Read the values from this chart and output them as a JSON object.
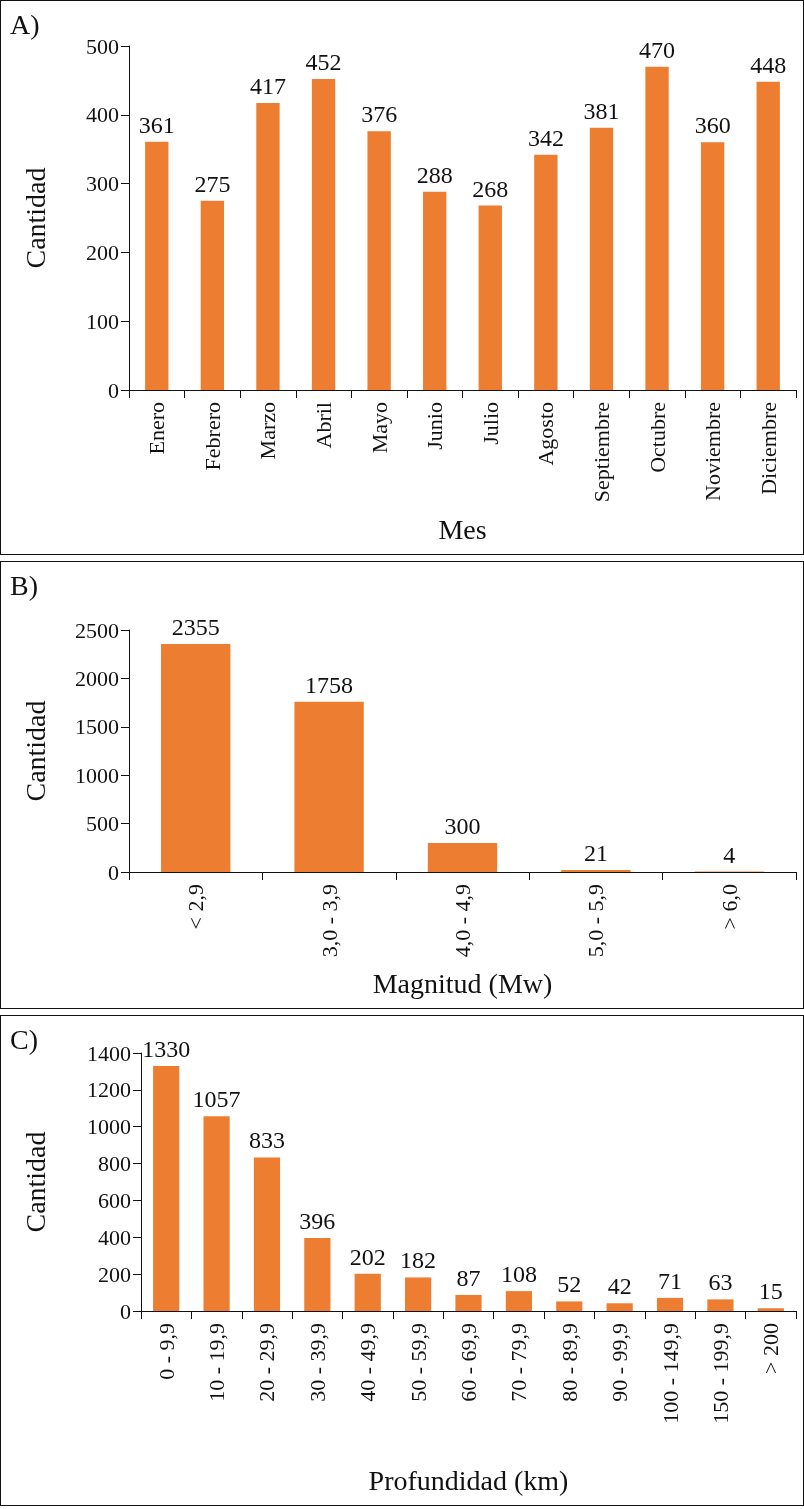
{
  "chart_data": [
    {
      "type": "bar",
      "title": "A)",
      "xlabel": "Mes",
      "ylabel": "Cantidad",
      "categories": [
        "Enero",
        "Febrero",
        "Marzo",
        "Abril",
        "Mayo",
        "Junio",
        "Julio",
        "Agosto",
        "Septiembre",
        "Octubre",
        "Noviembre",
        "Diciembre"
      ],
      "values": [
        361,
        275,
        417,
        452,
        376,
        288,
        268,
        342,
        381,
        470,
        360,
        448
      ],
      "color": "#ed7d31",
      "ylim": [
        0,
        500
      ],
      "yticks": [
        0,
        100,
        200,
        300,
        400,
        500
      ],
      "data_labels": true
    },
    {
      "type": "bar",
      "title": "B)",
      "xlabel": "Magnitud (Mw)",
      "ylabel": "Cantidad",
      "categories": [
        "< 2,9",
        "3,0 - 3,9",
        "4,0 - 4,9",
        "5,0 - 5,9",
        "> 6,0"
      ],
      "values": [
        2355,
        1758,
        300,
        21,
        4
      ],
      "color": "#ed7d31",
      "ylim": [
        0,
        2500
      ],
      "yticks": [
        0,
        500,
        1000,
        1500,
        2000,
        2500
      ],
      "data_labels": true
    },
    {
      "type": "bar",
      "title": "C)",
      "xlabel": "Profundidad (km)",
      "ylabel": "Cantidad",
      "categories": [
        "0 - 9,9",
        "10 - 19,9",
        "20 - 29,9",
        "30 - 39,9",
        "40 - 49,9",
        "50 - 59,9",
        "60 - 69,9",
        "70 - 79,9",
        "80 - 89,9",
        "90 - 99,9",
        "100 - 149,9",
        "150 - 199,9",
        "> 200"
      ],
      "values": [
        1330,
        1057,
        833,
        396,
        202,
        182,
        87,
        108,
        52,
        42,
        71,
        63,
        15
      ],
      "color": "#ed7d31",
      "ylim": [
        0,
        1400
      ],
      "yticks": [
        0,
        200,
        400,
        600,
        800,
        1000,
        1200,
        1400
      ],
      "data_labels": true
    }
  ]
}
